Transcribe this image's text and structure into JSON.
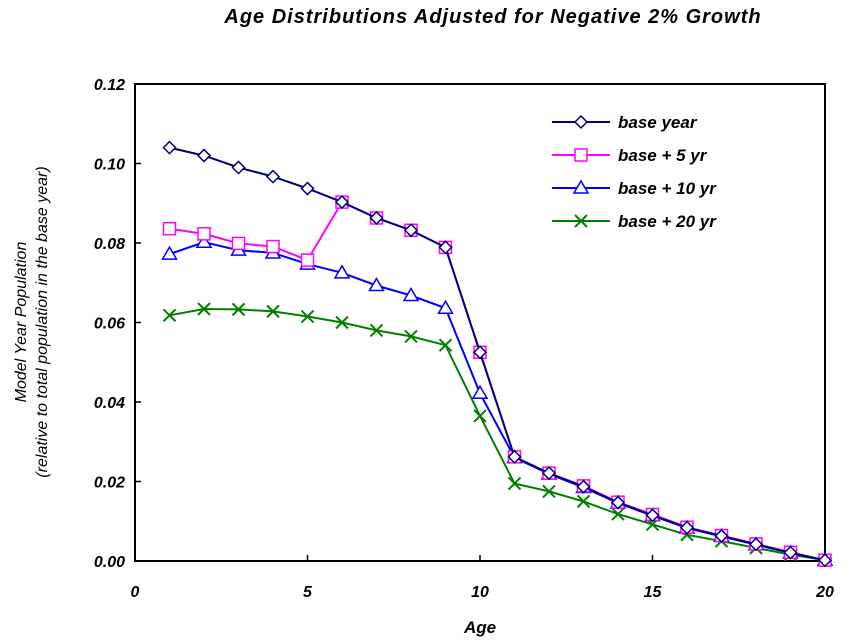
{
  "chart_data": {
    "type": "line",
    "title": "Age Distributions Adjusted for Negative 2% Growth",
    "xlabel": "Age",
    "ylabel_line1": "Model Year Population",
    "ylabel_line2": "(relative to total population in the base year)",
    "xlim": [
      0,
      20
    ],
    "ylim": [
      0,
      0.12
    ],
    "x_ticks": [
      "0",
      "5",
      "10",
      "15",
      "20"
    ],
    "y_ticks": [
      "0.00",
      "0.02",
      "0.04",
      "0.06",
      "0.08",
      "0.10",
      "0.12"
    ],
    "grid": false,
    "legend_position": "top-right",
    "x": [
      1,
      2,
      3,
      4,
      5,
      6,
      7,
      8,
      9,
      10,
      11,
      12,
      13,
      14,
      15,
      16,
      17,
      18,
      19,
      20
    ],
    "series": [
      {
        "name": "base year",
        "color": "#000080",
        "marker": "diamond",
        "values": [
          0.104,
          0.102,
          0.099,
          0.0967,
          0.0937,
          0.0903,
          0.0863,
          0.0832,
          0.0789,
          0.0525,
          0.0262,
          0.0221,
          0.0187,
          0.0147,
          0.0115,
          0.0084,
          0.0063,
          0.0042,
          0.0021,
          0.0002
        ]
      },
      {
        "name": "base + 5 yr",
        "color": "#ff00ff",
        "marker": "square",
        "values": [
          0.0836,
          0.0823,
          0.0799,
          0.0791,
          0.0757,
          0.0903,
          0.0863,
          0.0832,
          0.0789,
          0.0525,
          0.0262,
          0.0221,
          0.0189,
          0.0148,
          0.0117,
          0.0085,
          0.0064,
          0.0043,
          0.0022,
          0.0002
        ]
      },
      {
        "name": "base + 10 yr",
        "color": "#0000ff",
        "marker": "triangle",
        "values": [
          0.0772,
          0.0802,
          0.0782,
          0.0775,
          0.0747,
          0.0725,
          0.0693,
          0.0668,
          0.0636,
          0.0422,
          0.026,
          0.0219,
          0.0185,
          0.0146,
          0.0114,
          0.0083,
          0.0062,
          0.0041,
          0.002,
          0.0002
        ]
      },
      {
        "name": "base + 20 yr",
        "color": "#008000",
        "marker": "x",
        "values": [
          0.0618,
          0.0634,
          0.0633,
          0.0628,
          0.0615,
          0.06,
          0.058,
          0.0565,
          0.0543,
          0.0365,
          0.0195,
          0.0175,
          0.015,
          0.0118,
          0.0092,
          0.0066,
          0.005,
          0.0033,
          0.0016,
          0.0002
        ]
      }
    ]
  }
}
